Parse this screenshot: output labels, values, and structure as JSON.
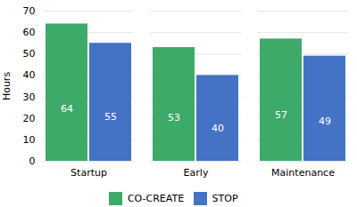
{
  "chart_data": {
    "type": "bar",
    "categories": [
      "Startup",
      "Early",
      "Maintenance"
    ],
    "series": [
      {
        "name": "CO-CREATE",
        "color": "#3daa6a",
        "values": [
          64,
          53,
          57
        ]
      },
      {
        "name": "STOP",
        "color": "#4472c4",
        "values": [
          55,
          40,
          49
        ]
      }
    ],
    "ylabel": "Hours",
    "ylim": [
      0,
      70
    ],
    "yticks": [
      0,
      10,
      20,
      30,
      40,
      50,
      60,
      70
    ],
    "grid": true,
    "legend": "bottom",
    "data_labels": true
  }
}
